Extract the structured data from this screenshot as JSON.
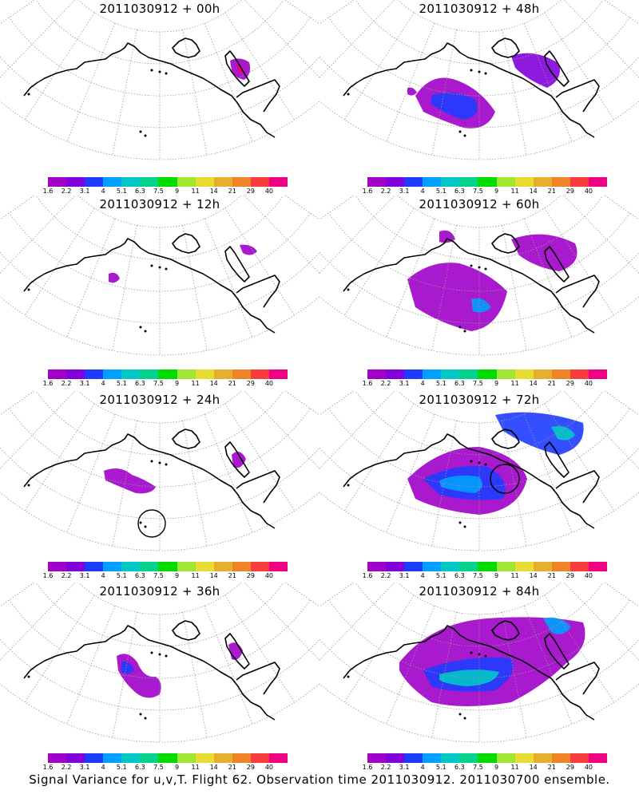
{
  "panels": [
    {
      "title": "2011030912 + 00h",
      "lead": "00h"
    },
    {
      "title": "2011030912 + 48h",
      "lead": "48h"
    },
    {
      "title": "2011030912 + 12h",
      "lead": "12h"
    },
    {
      "title": "2011030912 + 60h",
      "lead": "60h"
    },
    {
      "title": "2011030912 + 24h",
      "lead": "24h"
    },
    {
      "title": "2011030912 + 72h",
      "lead": "72h"
    },
    {
      "title": "2011030912 + 36h",
      "lead": "36h"
    },
    {
      "title": "2011030912 + 84h",
      "lead": "84h"
    }
  ],
  "colorbar": {
    "labels": [
      "1.6",
      "2.2",
      "3.1",
      "4",
      "5.1",
      "6.3",
      "7.5",
      "9",
      "11",
      "14",
      "21",
      "29",
      "40"
    ],
    "colors": [
      "#a000c8",
      "#8200dc",
      "#1e3cff",
      "#00a0ff",
      "#00c8c8",
      "#00d28c",
      "#00dc00",
      "#a0e632",
      "#e6dc32",
      "#e6af2d",
      "#f08228",
      "#fa3c3c",
      "#f00082"
    ]
  },
  "footer": "Signal Variance for u,v,T. Flight 62. Observation time 2011030912. 2011030700 ensemble."
}
